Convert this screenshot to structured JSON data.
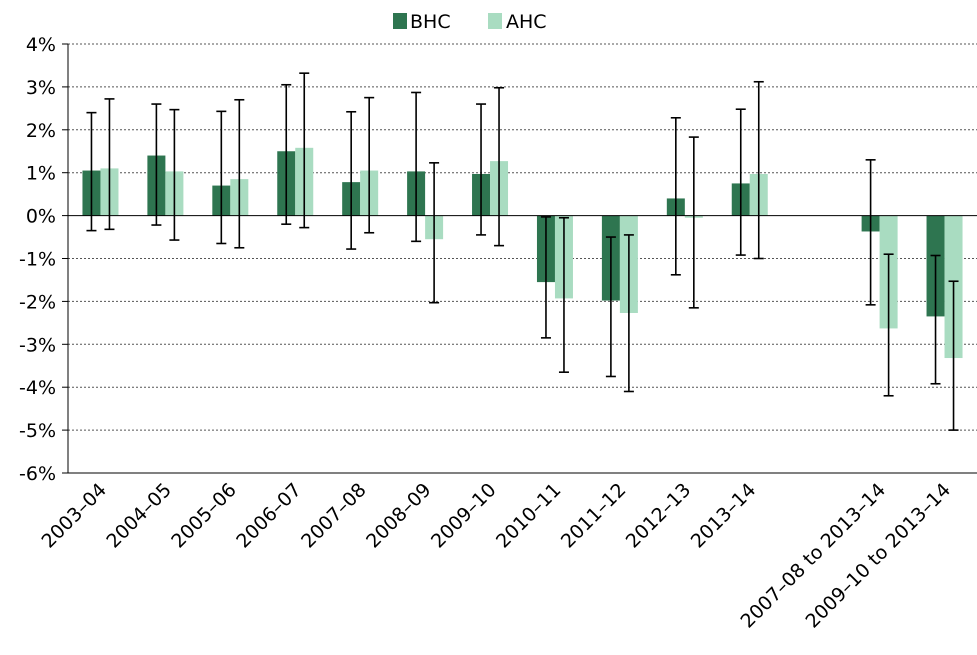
{
  "chart_data": {
    "type": "bar",
    "title": "",
    "xlabel": "",
    "ylabel": "",
    "ylim": [
      -6,
      4
    ],
    "y_ticks": [
      "4%",
      "3%",
      "2%",
      "1%",
      "0%",
      "-1%",
      "-2%",
      "-3%",
      "-4%",
      "-5%",
      "-6%"
    ],
    "grid": "horizontal-dotted",
    "legend_position": "top-center",
    "categories": [
      "2003–04",
      "2004–05",
      "2005–06",
      "2006–07",
      "2007–08",
      "2008–09",
      "2009–10",
      "2010–11",
      "2011–12",
      "2012–13",
      "2013–14",
      "",
      "2007–08 to 2013–14",
      "2009–10 to 2013–14"
    ],
    "series": [
      {
        "name": "BHC",
        "color": "#2e7550",
        "values": [
          1.05,
          1.4,
          0.7,
          1.5,
          0.78,
          1.03,
          0.97,
          -1.55,
          -1.98,
          0.4,
          0.75,
          null,
          -0.37,
          -2.35
        ],
        "error_low": [
          -0.35,
          -0.22,
          -0.65,
          -0.2,
          -0.78,
          -0.6,
          -0.45,
          -2.85,
          -3.75,
          -1.38,
          -0.92,
          null,
          -2.08,
          -3.92
        ],
        "error_high": [
          2.4,
          2.6,
          2.43,
          3.05,
          2.42,
          2.87,
          2.6,
          -0.03,
          -0.5,
          2.28,
          2.48,
          null,
          1.3,
          -0.93
        ]
      },
      {
        "name": "AHC",
        "color": "#a9dcc1",
        "values": [
          1.1,
          1.03,
          0.85,
          1.58,
          1.05,
          -0.55,
          1.27,
          -1.93,
          -2.27,
          -0.05,
          0.97,
          null,
          -2.63,
          -3.32
        ],
        "error_low": [
          -0.32,
          -0.57,
          -0.75,
          -0.28,
          -0.4,
          -2.03,
          -0.7,
          -3.65,
          -4.1,
          -2.15,
          -1.0,
          null,
          -4.2,
          -5.0
        ],
        "error_high": [
          2.72,
          2.47,
          2.7,
          3.32,
          2.75,
          1.23,
          2.98,
          -0.05,
          -0.45,
          1.83,
          3.12,
          null,
          -0.9,
          -1.53
        ]
      }
    ]
  }
}
